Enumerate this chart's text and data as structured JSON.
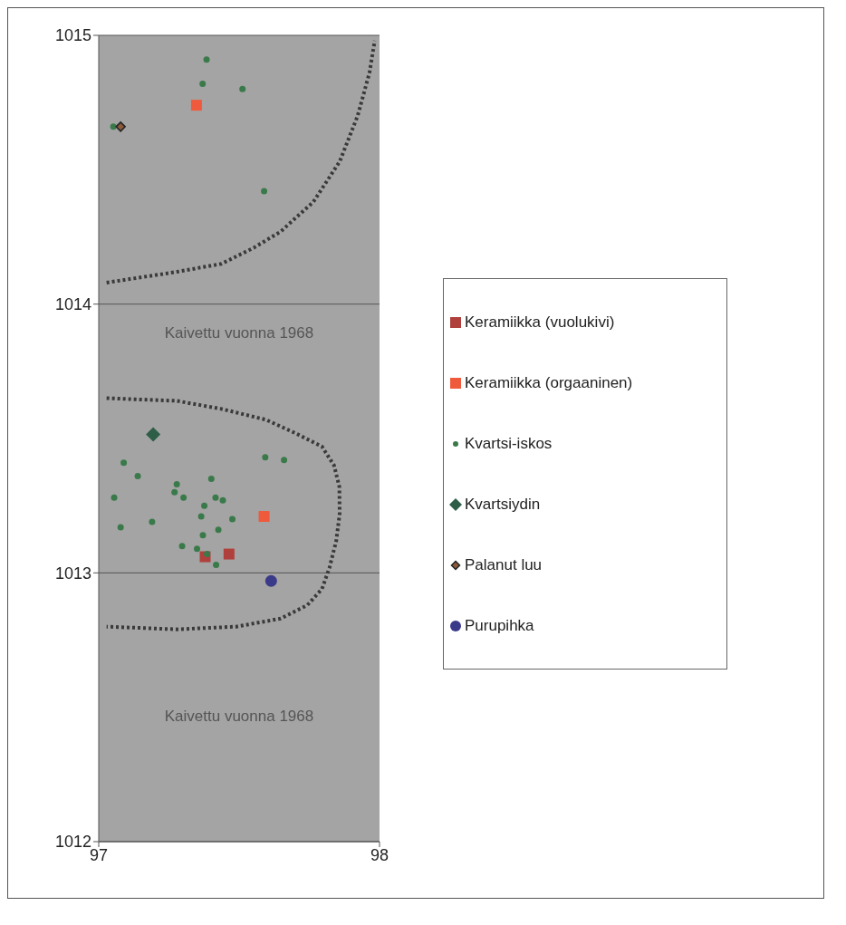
{
  "chart_data": {
    "type": "scatter",
    "xlim": [
      97,
      98
    ],
    "ylim": [
      1012,
      1015
    ],
    "xticks": [
      97,
      98
    ],
    "yticks": [
      1012,
      1013,
      1014,
      1015
    ],
    "grid": "y",
    "legend": "right",
    "annotations": [
      "Kaivettu vuonna 1968",
      "Kaivettu vuonna 1968"
    ],
    "series": [
      {
        "name": "Keramiikka (vuolukivi)",
        "color": "#b0403c",
        "marker": "square",
        "x": [
          97.379,
          97.464
        ],
        "values": [
          1013.06,
          1013.07
        ]
      },
      {
        "name": "Keramiikka (orgaaninen)",
        "color": "#f05a3c",
        "marker": "square",
        "x": [
          97.348,
          97.589
        ],
        "values": [
          1014.74,
          1013.21
        ]
      },
      {
        "name": "Kvartsi-iskos",
        "color": "#3a7a4a",
        "marker": "circle",
        "x": [
          97.384,
          97.37,
          97.512,
          97.052,
          97.589,
          97.089,
          97.139,
          97.055,
          97.078,
          97.19,
          97.278,
          97.27,
          97.302,
          97.401,
          97.416,
          97.442,
          97.376,
          97.365,
          97.476,
          97.426,
          97.371,
          97.297,
          97.35,
          97.386,
          97.418,
          97.593,
          97.66
        ],
        "values": [
          1014.91,
          1014.82,
          1014.8,
          1014.66,
          1014.42,
          1013.41,
          1013.36,
          1013.28,
          1013.17,
          1013.19,
          1013.33,
          1013.3,
          1013.28,
          1013.35,
          1013.28,
          1013.27,
          1013.25,
          1013.21,
          1013.2,
          1013.16,
          1013.14,
          1013.1,
          1013.09,
          1013.07,
          1013.03,
          1013.43,
          1013.42
        ]
      },
      {
        "name": "Kvartsiydin",
        "color": "#2e5e48",
        "marker": "diamond",
        "x": [
          97.194
        ],
        "values": [
          1013.515
        ]
      },
      {
        "name": "Palanut luu",
        "color": "#8a5a3a",
        "marker": "diamond",
        "x": [
          97.078
        ],
        "values": [
          1014.66
        ]
      },
      {
        "name": "Purupihka",
        "color": "#3a3a8a",
        "marker": "circle",
        "x": [
          97.614
        ],
        "values": [
          1012.97
        ]
      },
      {
        "type": "line",
        "color": "#3a3a3a",
        "line_style": "dotted",
        "marker": "none",
        "x": [
          97.028,
          97.278,
          97.437,
          97.553,
          97.648,
          97.764,
          97.858,
          97.922,
          97.964,
          97.983
        ],
        "values": [
          1014.08,
          1014.12,
          1014.15,
          1014.21,
          1014.27,
          1014.38,
          1014.53,
          1014.7,
          1014.86,
          1014.98
        ]
      },
      {
        "type": "line",
        "color": "#3a3a3a",
        "line_style": "dotted",
        "marker": "none",
        "x": [
          97.028,
          97.278,
          97.437,
          97.595,
          97.7,
          97.795,
          97.838,
          97.857,
          97.858,
          97.846,
          97.822,
          97.795,
          97.743,
          97.648,
          97.49,
          97.278,
          97.028
        ],
        "values": [
          1013.65,
          1013.64,
          1013.61,
          1013.57,
          1013.52,
          1013.47,
          1013.4,
          1013.32,
          1013.22,
          1013.12,
          1013.02,
          1012.94,
          1012.88,
          1012.83,
          1012.8,
          1012.79,
          1012.8
        ]
      }
    ]
  }
}
